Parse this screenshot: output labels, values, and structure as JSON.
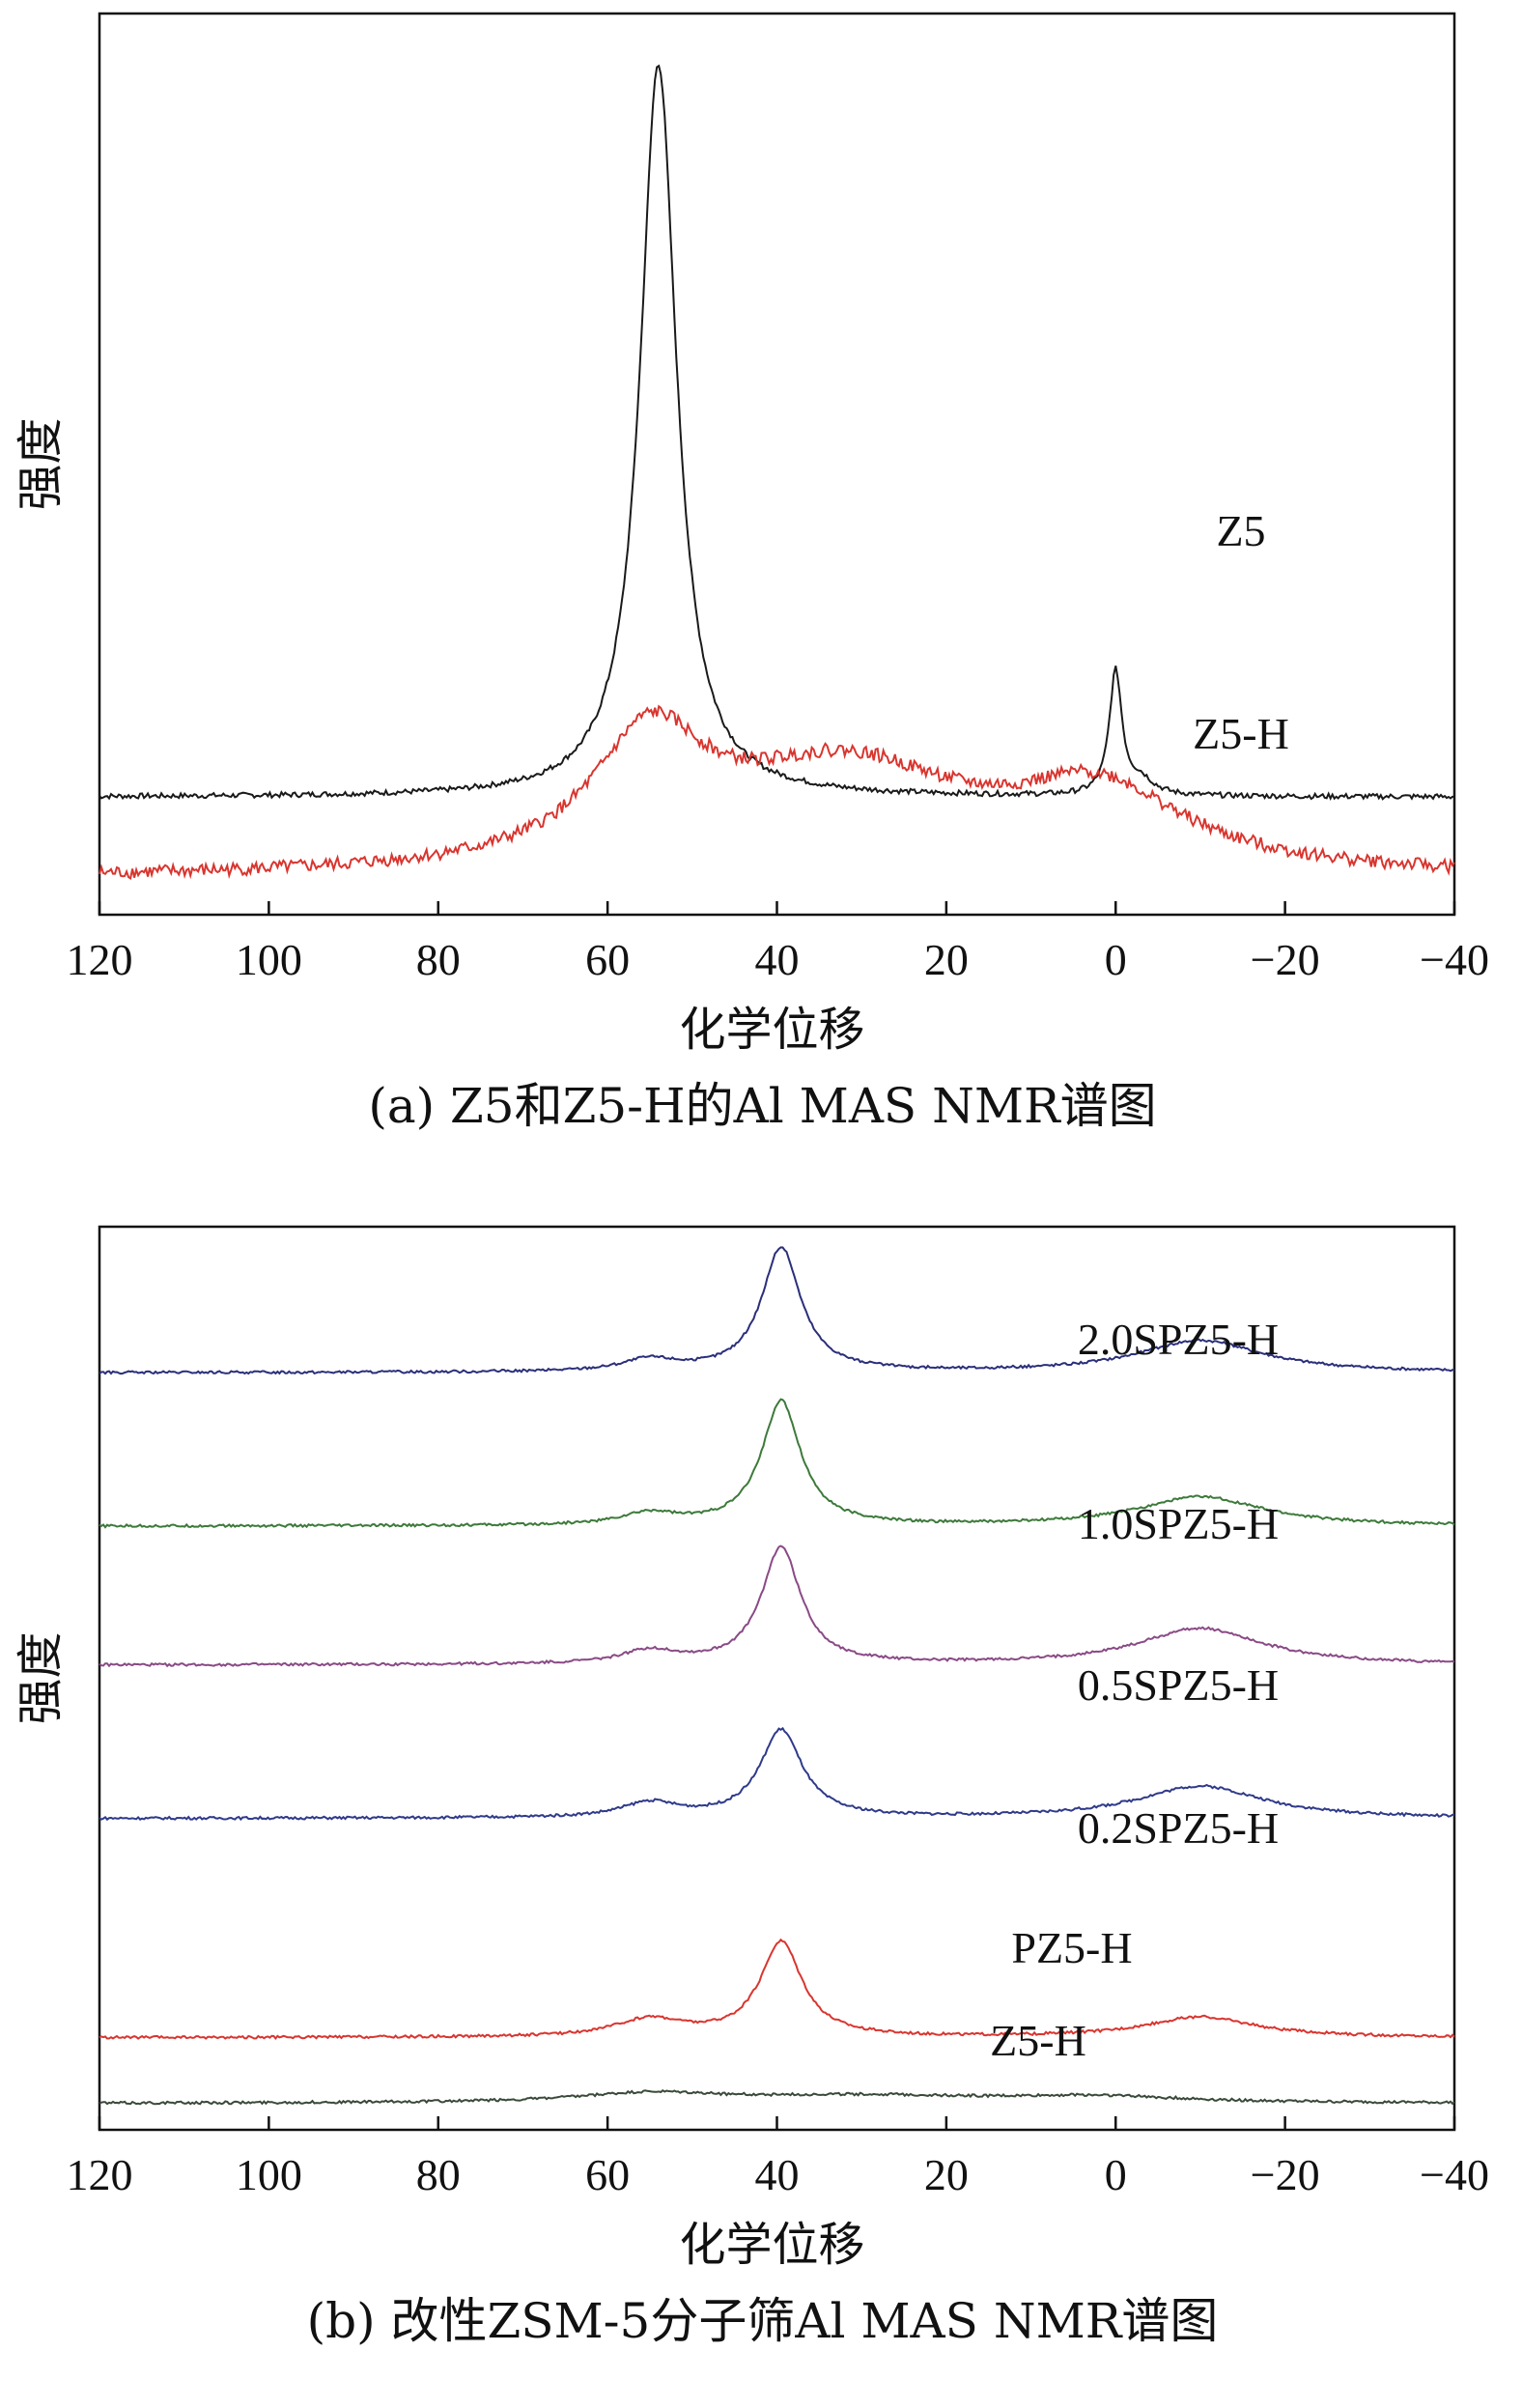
{
  "chart_data": [
    {
      "type": "line",
      "caption": "(a) Z5和Z5-H的Al MAS NMR谱图",
      "xlabel": "化学位移",
      "ylabel": "强度",
      "xlim": [
        120,
        -40
      ],
      "xticks": [
        "120",
        "100",
        "80",
        "60",
        "40",
        "20",
        "0",
        "−20",
        "−40"
      ],
      "grid": false,
      "legend": "inline labels",
      "series": [
        {
          "name": "Z5",
          "color": "#1a1a1a",
          "baseline": 0.28,
          "peaks": [
            {
              "center": 54,
              "height": 2.5,
              "width": 2.6
            },
            {
              "center": 0,
              "height": 0.42,
              "width": 0.9
            },
            {
              "center": -3,
              "height": 0.05,
              "width": 1.8
            }
          ]
        },
        {
          "name": "Z5-H",
          "color": "#d9352f",
          "baseline": 0.0,
          "peaks": [
            {
              "center": 55,
              "height": 0.42,
              "width": 8
            },
            {
              "center": 32,
              "height": 0.36,
              "width": 18
            },
            {
              "center": 2,
              "height": 0.26,
              "width": 12
            }
          ]
        }
      ]
    },
    {
      "type": "line",
      "caption": "(b) 改性ZSM-5分子筛Al MAS NMR谱图",
      "xlabel": "化学位移",
      "ylabel": "强度",
      "xlim": [
        120,
        -40
      ],
      "xticks": [
        "120",
        "100",
        "80",
        "60",
        "40",
        "20",
        "0",
        "−20",
        "−40"
      ],
      "grid": false,
      "legend": "inline labels",
      "series": [
        {
          "name": "2.0SPZ5-H",
          "color": "#2b2f7a",
          "baseline": 5.0,
          "peaks": [
            {
              "center": 39.5,
              "height": 0.85,
              "width": 2.8
            },
            {
              "center": 55,
              "height": 0.08,
              "width": 4
            },
            {
              "center": -10,
              "height": 0.22,
              "width": 9
            }
          ]
        },
        {
          "name": "1.0SPZ5-H",
          "color": "#3d7a3a",
          "baseline": 3.95,
          "peaks": [
            {
              "center": 39.5,
              "height": 0.85,
              "width": 2.8
            },
            {
              "center": 55,
              "height": 0.08,
              "width": 4
            },
            {
              "center": -10,
              "height": 0.2,
              "width": 9
            }
          ]
        },
        {
          "name": "0.5SPZ5-H",
          "color": "#8a4a86",
          "baseline": 3.0,
          "peaks": [
            {
              "center": 39.5,
              "height": 0.8,
              "width": 2.8
            },
            {
              "center": 55,
              "height": 0.09,
              "width": 4
            },
            {
              "center": -10,
              "height": 0.25,
              "width": 9
            }
          ]
        },
        {
          "name": "0.2SPZ5-H",
          "color": "#2f3a8a",
          "baseline": 1.95,
          "peaks": [
            {
              "center": 39.5,
              "height": 0.6,
              "width": 3.0
            },
            {
              "center": 55,
              "height": 0.1,
              "width": 4
            },
            {
              "center": -10,
              "height": 0.22,
              "width": 9
            }
          ]
        },
        {
          "name": "PZ5-H",
          "color": "#d9352f",
          "baseline": 0.45,
          "peaks": [
            {
              "center": 39.5,
              "height": 0.65,
              "width": 3.0
            },
            {
              "center": 55,
              "height": 0.12,
              "width": 5
            },
            {
              "center": -10,
              "height": 0.14,
              "width": 8
            }
          ]
        },
        {
          "name": "Z5-H",
          "color": "#3a4a3a",
          "baseline": 0.0,
          "peaks": [
            {
              "center": 55,
              "height": 0.06,
              "width": 10
            },
            {
              "center": 30,
              "height": 0.05,
              "width": 20
            },
            {
              "center": 2,
              "height": 0.04,
              "width": 12
            }
          ]
        }
      ]
    }
  ]
}
